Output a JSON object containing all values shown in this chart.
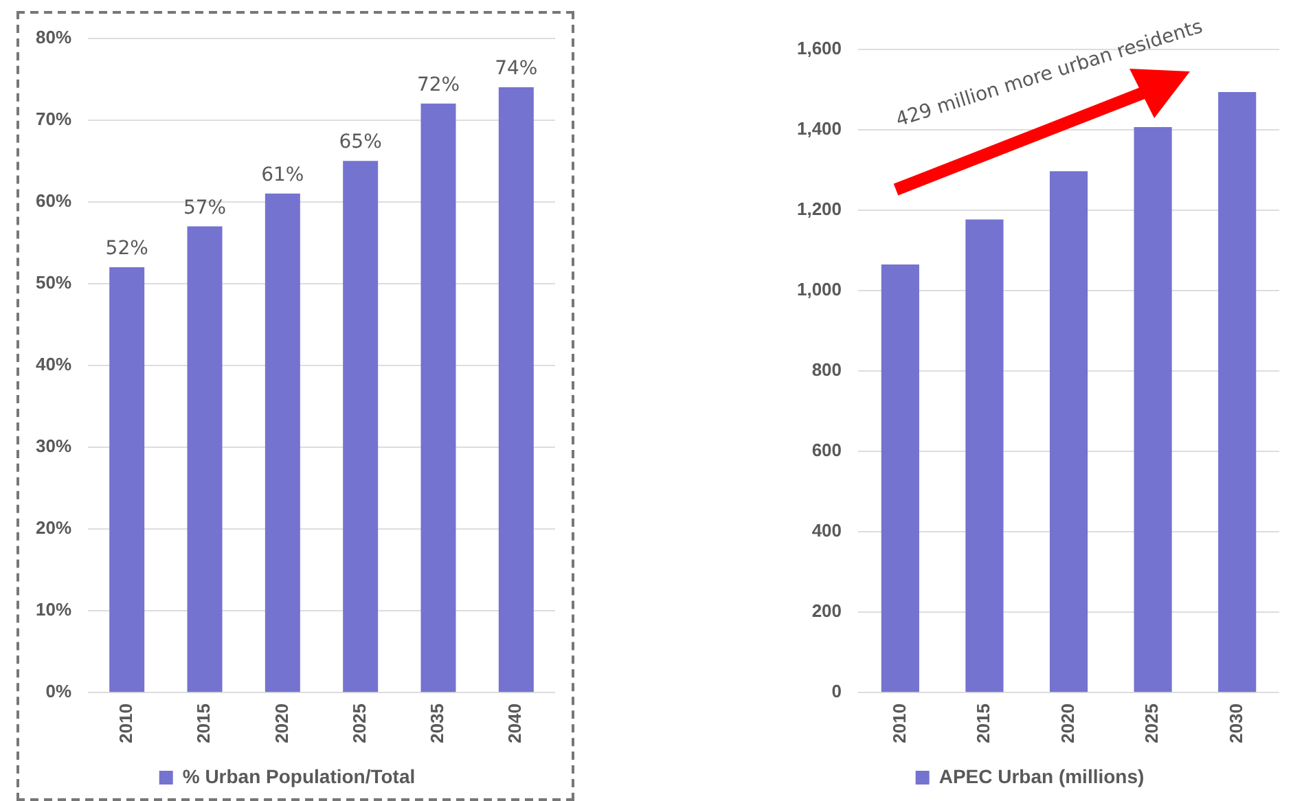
{
  "chart_data": [
    {
      "type": "bar",
      "categories": [
        "2010",
        "2015",
        "2020",
        "2025",
        "2035",
        "2040"
      ],
      "series": [
        {
          "name": "% Urban Population/Total",
          "color": "#7473d0",
          "values": [
            52,
            57,
            61,
            65,
            72,
            74
          ]
        }
      ],
      "ylim": [
        0,
        80
      ],
      "yticks": [
        {
          "value": 0,
          "label": "0%"
        },
        {
          "value": 10,
          "label": "10%"
        },
        {
          "value": 20,
          "label": "20%"
        },
        {
          "value": 30,
          "label": "30%"
        },
        {
          "value": 40,
          "label": "40%"
        },
        {
          "value": 50,
          "label": "50%"
        },
        {
          "value": 60,
          "label": "60%"
        },
        {
          "value": 70,
          "label": "70%"
        },
        {
          "value": 80,
          "label": "80%"
        }
      ],
      "value_labels": [
        "52%",
        "57%",
        "61%",
        "65%",
        "72%",
        "74%"
      ],
      "grid": "y",
      "legend": "bottom"
    },
    {
      "type": "bar",
      "categories": [
        "2010",
        "2015",
        "2020",
        "2025",
        "2030"
      ],
      "series": [
        {
          "name": "APEC Urban (millions)",
          "color": "#7473d0",
          "values": [
            1065,
            1177,
            1297,
            1407,
            1494
          ]
        }
      ],
      "ylim": [
        0,
        1600
      ],
      "yticks": [
        {
          "value": 0,
          "label": "0"
        },
        {
          "value": 200,
          "label": "200"
        },
        {
          "value": 400,
          "label": "400"
        },
        {
          "value": 600,
          "label": "600"
        },
        {
          "value": 800,
          "label": "800"
        },
        {
          "value": 1000,
          "label": "1,000"
        },
        {
          "value": 1200,
          "label": "1,200"
        },
        {
          "value": 1400,
          "label": "1,400"
        },
        {
          "value": 1600,
          "label": "1,600"
        }
      ],
      "annotations": [
        "429 million more urban residents"
      ],
      "grid": "y",
      "legend": "bottom"
    }
  ]
}
